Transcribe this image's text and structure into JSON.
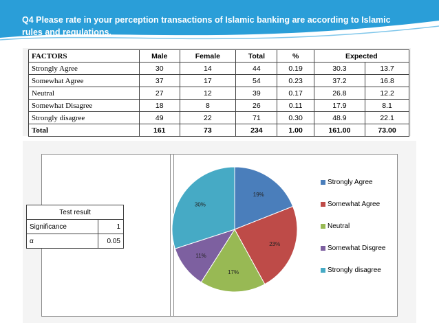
{
  "title": "Q4 Please rate in your perception transactions of Islamic banking are according to Islamic rules and regulations.",
  "table": {
    "headers": [
      "FACTORS",
      "Male",
      "Female",
      "Total",
      "%",
      "Expected"
    ],
    "rows": [
      {
        "factor": "Strongly Agree",
        "male": "30",
        "female": "14",
        "total": "44",
        "pct": "0.19",
        "exp_male": "30.3",
        "exp_female": "13.7"
      },
      {
        "factor": "Somewhat Agree",
        "male": "37",
        "female": "17",
        "total": "54",
        "pct": "0.23",
        "exp_male": "37.2",
        "exp_female": "16.8"
      },
      {
        "factor": "Neutral",
        "male": "27",
        "female": "12",
        "total": "39",
        "pct": "0.17",
        "exp_male": "26.8",
        "exp_female": "12.2"
      },
      {
        "factor": "Somewhat Disagree",
        "male": "18",
        "female": "8",
        "total": "26",
        "pct": "0.11",
        "exp_male": "17.9",
        "exp_female": "8.1"
      },
      {
        "factor": "Strongly disagree",
        "male": "49",
        "female": "22",
        "total": "71",
        "pct": "0.30",
        "exp_male": "48.9",
        "exp_female": "22.1"
      },
      {
        "factor": "Total",
        "male": "161",
        "female": "73",
        "total": "234",
        "pct": "1.00",
        "exp_male": "161.00",
        "exp_female": "73.00"
      }
    ]
  },
  "test_result": {
    "title": "Test result",
    "significance_label": "Significance",
    "significance_value": "1",
    "alpha_label": "α",
    "alpha_value": "0.05"
  },
  "chart_data": {
    "type": "pie",
    "categories": [
      "Strongly Agree",
      "Somewhat Agree",
      "Neutral",
      "Somewhat Disgree",
      "Strongly disagree"
    ],
    "values": [
      19,
      23,
      17,
      11,
      30
    ],
    "labels": [
      "19%",
      "23%",
      "17%",
      "11%",
      "30%"
    ],
    "colors": [
      "#4a7ebb",
      "#be4b48",
      "#98b954",
      "#7d60a0",
      "#46aac5"
    ],
    "legend_position": "right"
  }
}
